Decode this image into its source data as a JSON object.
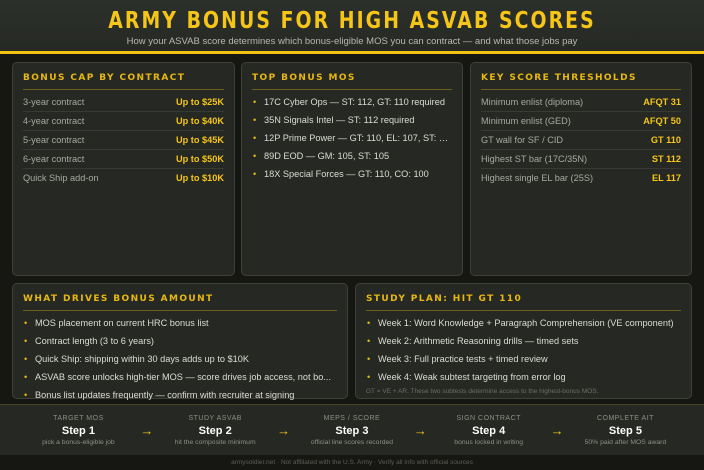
{
  "header": {
    "title": "ARMY BONUS FOR HIGH ASVAB SCORES",
    "subtitle": "How your ASVAB score determines which bonus-eligible MOS you can contract — and what those jobs pay"
  },
  "bonus_cap": {
    "title": "BONUS CAP BY CONTRACT",
    "rows": [
      {
        "label": "3-year contract",
        "value": "Up to $25K"
      },
      {
        "label": "4-year contract",
        "value": "Up to $40K"
      },
      {
        "label": "5-year contract",
        "value": "Up to $45K"
      },
      {
        "label": "6-year contract",
        "value": "Up to $50K"
      },
      {
        "label": "Quick Ship add-on",
        "value": "Up to $10K"
      }
    ]
  },
  "top_mos": {
    "title": "TOP BONUS MOS",
    "items": [
      "17C Cyber Ops — ST: 112, GT: 110 required",
      "35N Signals Intel — ST: 112 required",
      "12P Prime Power — GT: 110, EL: 107, ST: 107",
      "89D EOD — GM: 105, ST: 105",
      "18X Special Forces — GT: 110, CO: 100"
    ]
  },
  "thresholds": {
    "title": "KEY SCORE THRESHOLDS",
    "rows": [
      {
        "label": "Minimum enlist (diploma)",
        "value": "AFQT 31"
      },
      {
        "label": "Minimum enlist (GED)",
        "value": "AFQT 50"
      },
      {
        "label": "GT wall for SF / CID",
        "value": "GT 110"
      },
      {
        "label": "Highest ST bar (17C/35N)",
        "value": "ST 112"
      },
      {
        "label": "Highest single EL bar (25S)",
        "value": "EL 117"
      }
    ]
  },
  "drivers": {
    "title": "WHAT DRIVES BONUS AMOUNT",
    "items": [
      "MOS placement on current HRC bonus list",
      "Contract length (3 to 6 years)",
      "Quick Ship: shipping within 30 days adds up to $10K",
      "ASVAB score unlocks high-tier MOS — score drives job access, not bo...",
      "Bonus list updates frequently — confirm with recruiter at signing"
    ]
  },
  "study": {
    "title": "STUDY PLAN: HIT GT 110",
    "items": [
      "Week 1: Word Knowledge + Paragraph Comprehension (VE component)",
      "Week 2: Arithmetic Reasoning drills — timed sets",
      "Week 3: Full practice tests + timed review",
      "Week 4: Weak subtest targeting from error log"
    ],
    "note": "GT = VE + AR. These two subtests determine access to the highest-bonus MOS."
  },
  "steps": [
    {
      "label": "TARGET MOS",
      "step": "Step 1",
      "desc": "pick a bonus-eligible job"
    },
    {
      "label": "STUDY ASVAB",
      "step": "Step 2",
      "desc": "hit the composite minimum"
    },
    {
      "label": "MEPS / SCORE",
      "step": "Step 3",
      "desc": "official line scores recorded"
    },
    {
      "label": "SIGN CONTRACT",
      "step": "Step 4",
      "desc": "bonus locked in writing"
    },
    {
      "label": "COMPLETE AIT",
      "step": "Step 5",
      "desc": "50% paid after MOS award"
    }
  ],
  "arrow": "→",
  "footer": "armysoldier.net · Not affiliated with the U.S. Army · Verify all info with official sources",
  "colors": {
    "accent": "#f5c518",
    "background": "#161713",
    "card": "#262823"
  }
}
